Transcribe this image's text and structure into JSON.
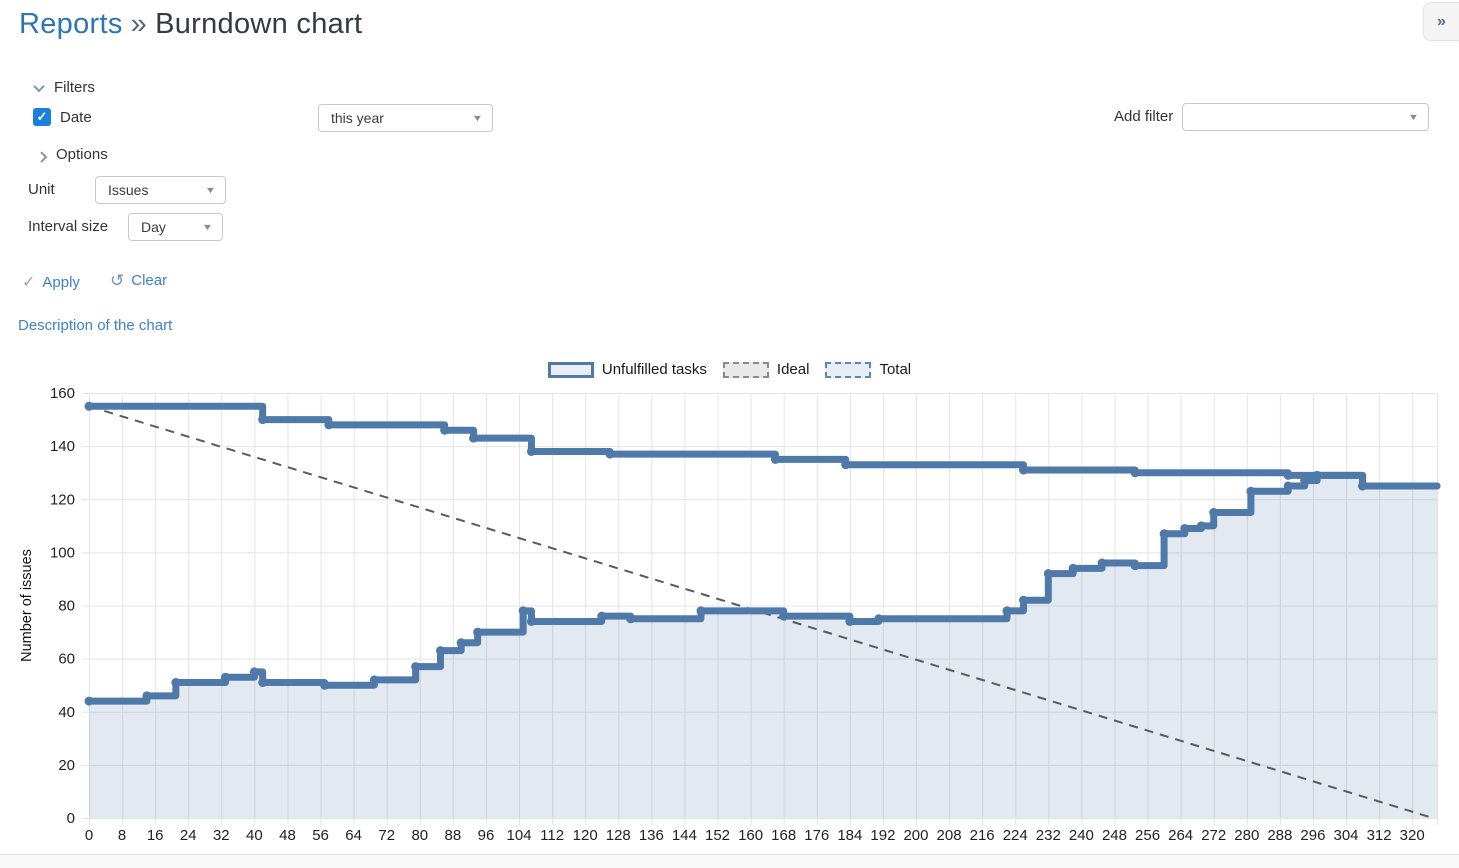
{
  "page": {
    "title_link": "Reports",
    "title_sep": "»",
    "title_current": "Burndown chart",
    "collapse_glyph": "»"
  },
  "icons": {
    "caret": "▼",
    "check": "✓",
    "undo": "↺",
    "checkbox_check": "✓"
  },
  "filters": {
    "section_label": "Filters",
    "date": {
      "label": "Date",
      "checked": true,
      "value": "this year"
    },
    "add_filter_label": "Add filter",
    "add_filter_value": ""
  },
  "options": {
    "section_label": "Options",
    "unit_label": "Unit",
    "unit_value": "Issues",
    "interval_label": "Interval size",
    "interval_value": "Day"
  },
  "actions": {
    "apply_label": "Apply",
    "clear_label": "Clear"
  },
  "description_link": "Description of the chart",
  "chart_data": {
    "type": "area",
    "title": "",
    "xlabel": "",
    "ylabel": "Number of issues",
    "xlim": [
      0,
      326
    ],
    "ylim": [
      0,
      160
    ],
    "grid": true,
    "legend_position": "top",
    "legend": [
      "Unfulfilled tasks",
      "Ideal",
      "Total"
    ],
    "x_ticks": [
      0,
      8,
      16,
      24,
      32,
      40,
      48,
      56,
      64,
      72,
      80,
      88,
      96,
      104,
      112,
      120,
      128,
      136,
      144,
      152,
      160,
      168,
      176,
      184,
      192,
      200,
      208,
      216,
      224,
      232,
      240,
      248,
      256,
      264,
      272,
      280,
      288,
      296,
      304,
      312,
      320
    ],
    "y_ticks": [
      0,
      20,
      40,
      60,
      80,
      100,
      120,
      140,
      160
    ],
    "colors": {
      "series_blue": "#4e79a8",
      "area_fill": "rgba(78,121,168,0.16)",
      "ideal_gray": "#5a5a5a",
      "gridline": "#e4e4e4"
    },
    "series": [
      {
        "name": "Unfulfilled tasks",
        "key": "unfulfilled",
        "style": "area-step",
        "color": "#4e79a8",
        "fill": "rgba(78,121,168,0.16)",
        "points": [
          [
            0,
            44
          ],
          [
            14,
            46
          ],
          [
            21,
            51
          ],
          [
            33,
            53
          ],
          [
            40,
            55
          ],
          [
            42,
            51
          ],
          [
            57,
            50
          ],
          [
            69,
            52
          ],
          [
            79,
            57
          ],
          [
            85,
            63
          ],
          [
            90,
            66
          ],
          [
            94,
            70
          ],
          [
            105,
            78
          ],
          [
            107,
            74
          ],
          [
            124,
            76
          ],
          [
            131,
            75
          ],
          [
            148,
            78
          ],
          [
            168,
            76
          ],
          [
            184,
            74
          ],
          [
            191,
            75
          ],
          [
            222,
            78
          ],
          [
            226,
            82
          ],
          [
            232,
            92
          ],
          [
            238,
            94
          ],
          [
            245,
            96
          ],
          [
            253,
            95
          ],
          [
            260,
            107
          ],
          [
            265,
            109
          ],
          [
            269,
            110
          ],
          [
            272,
            115
          ],
          [
            281,
            123
          ],
          [
            290,
            125
          ],
          [
            294,
            127
          ],
          [
            297,
            129
          ],
          [
            308,
            125
          ]
        ]
      },
      {
        "name": "Ideal",
        "key": "ideal",
        "style": "dashed-line",
        "color": "#5a5a5a",
        "points": [
          [
            0,
            155
          ],
          [
            325,
            0
          ]
        ]
      },
      {
        "name": "Total",
        "key": "total",
        "style": "step-line",
        "color": "#4e79a8",
        "points": [
          [
            0,
            155
          ],
          [
            42,
            150
          ],
          [
            58,
            148
          ],
          [
            86,
            146
          ],
          [
            93,
            143
          ],
          [
            107,
            138
          ],
          [
            126,
            137
          ],
          [
            166,
            135
          ],
          [
            183,
            133
          ],
          [
            226,
            131
          ],
          [
            253,
            130
          ],
          [
            290,
            129
          ],
          [
            308,
            125
          ]
        ]
      }
    ]
  }
}
